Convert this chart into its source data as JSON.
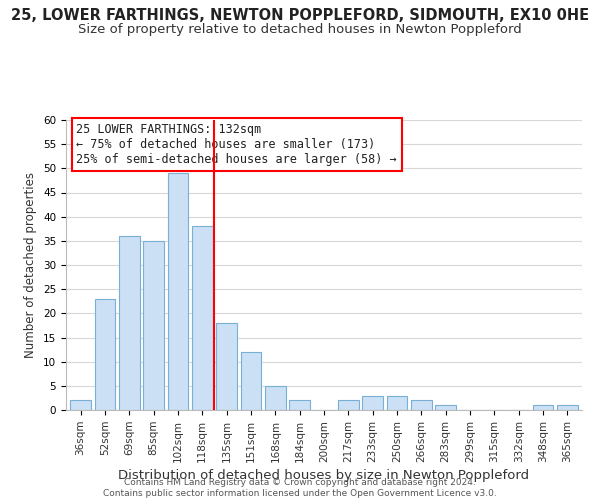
{
  "title": "25, LOWER FARTHINGS, NEWTON POPPLEFORD, SIDMOUTH, EX10 0HE",
  "subtitle": "Size of property relative to detached houses in Newton Poppleford",
  "xlabel": "Distribution of detached houses by size in Newton Poppleford",
  "ylabel": "Number of detached properties",
  "bar_labels": [
    "36sqm",
    "52sqm",
    "69sqm",
    "85sqm",
    "102sqm",
    "118sqm",
    "135sqm",
    "151sqm",
    "168sqm",
    "184sqm",
    "200sqm",
    "217sqm",
    "233sqm",
    "250sqm",
    "266sqm",
    "283sqm",
    "299sqm",
    "315sqm",
    "332sqm",
    "348sqm",
    "365sqm"
  ],
  "bar_heights": [
    2,
    23,
    36,
    35,
    49,
    38,
    18,
    12,
    5,
    2,
    0,
    2,
    3,
    3,
    2,
    1,
    0,
    0,
    0,
    1,
    1
  ],
  "bar_color": "#cce0f5",
  "bar_edge_color": "#7aafd4",
  "vline_color": "red",
  "annotation_title": "25 LOWER FARTHINGS: 132sqm",
  "annotation_line1": "← 75% of detached houses are smaller (173)",
  "annotation_line2": "25% of semi-detached houses are larger (58) →",
  "annotation_box_color": "white",
  "annotation_box_edge_color": "red",
  "ylim": [
    0,
    60
  ],
  "yticks": [
    0,
    5,
    10,
    15,
    20,
    25,
    30,
    35,
    40,
    45,
    50,
    55,
    60
  ],
  "footer1": "Contains HM Land Registry data © Crown copyright and database right 2024.",
  "footer2": "Contains public sector information licensed under the Open Government Licence v3.0.",
  "bg_color": "white",
  "grid_color": "#d8d8d8",
  "title_fontsize": 10.5,
  "subtitle_fontsize": 9.5,
  "ylabel_fontsize": 8.5,
  "xlabel_fontsize": 9.5,
  "tick_fontsize": 7.5,
  "footer_fontsize": 6.5,
  "annotation_fontsize": 8.5
}
